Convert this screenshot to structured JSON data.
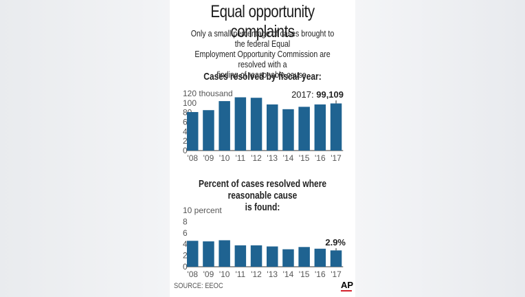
{
  "title": "Equal opportunity complaints",
  "subtitle": [
    "Only a small percentage of cases brought to the federal Equal",
    "Employment Opportunity Commission are resolved with a",
    "finding of reasonable cause."
  ],
  "source": "SOURCE: EEOC",
  "logo": "AP",
  "colors": {
    "bar": "#1f6391",
    "accent": "#d21f2b"
  },
  "chart_data": [
    {
      "type": "bar",
      "title": "Cases resolved by fiscal year:",
      "categories": [
        "'08",
        "'09",
        "'10",
        "'11",
        "'12",
        "'13",
        "'14",
        "'15",
        "'16",
        "'17"
      ],
      "values": [
        81,
        85,
        104,
        112,
        111,
        97,
        87,
        92,
        97,
        99.109
      ],
      "ylim": [
        0,
        120
      ],
      "yticks": [
        0,
        20,
        40,
        60,
        80,
        100,
        120
      ],
      "ytick_labels": [
        "0",
        "20",
        "40",
        "60",
        "80",
        "100",
        "120 thousand"
      ],
      "annotation": {
        "prefix": "2017: ",
        "value": "99,109"
      },
      "grid": false
    },
    {
      "type": "bar",
      "title": "Percent of cases resolved where reasonable cause is found:",
      "categories": [
        "'08",
        "'09",
        "'10",
        "'11",
        "'12",
        "'13",
        "'14",
        "'15",
        "'16",
        "'17"
      ],
      "values": [
        4.6,
        4.5,
        4.7,
        3.8,
        3.8,
        3.6,
        3.1,
        3.5,
        3.2,
        2.9
      ],
      "ylim": [
        0,
        10
      ],
      "yticks": [
        0,
        2,
        4,
        6,
        8,
        10
      ],
      "ytick_labels": [
        "0",
        "2",
        "4",
        "6",
        "8",
        "10 percent"
      ],
      "annotation": {
        "prefix": "",
        "value": "2.9%"
      },
      "grid": false
    }
  ]
}
